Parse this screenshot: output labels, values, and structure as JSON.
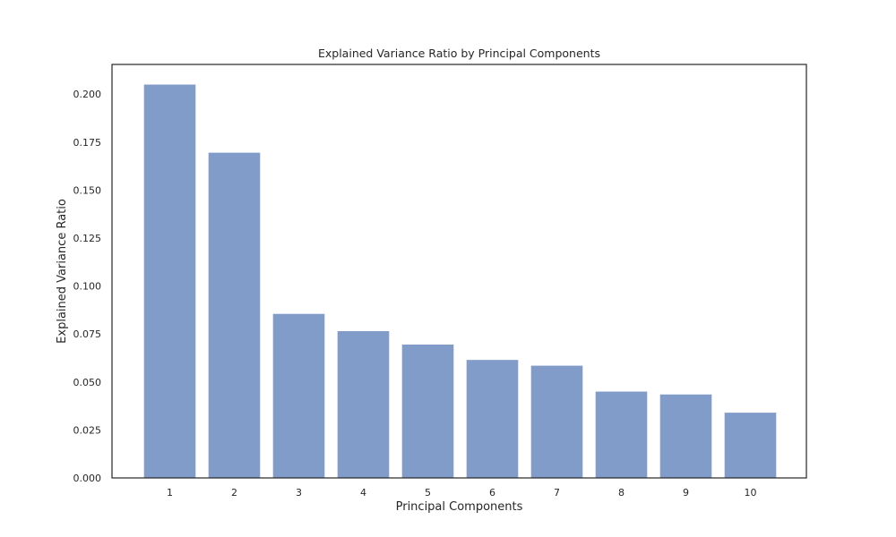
{
  "chart_data": {
    "type": "bar",
    "title": "Explained Variance Ratio by Principal Components",
    "xlabel": "Principal Components",
    "ylabel": "Explained Variance Ratio",
    "categories": [
      "1",
      "2",
      "3",
      "4",
      "5",
      "6",
      "7",
      "8",
      "9",
      "10"
    ],
    "values": [
      0.205,
      0.1695,
      0.0855,
      0.0765,
      0.0695,
      0.0615,
      0.0585,
      0.045,
      0.0435,
      0.034
    ],
    "ylim": [
      0,
      0.2155
    ],
    "yticks": [
      "0.000",
      "0.025",
      "0.050",
      "0.075",
      "0.100",
      "0.125",
      "0.150",
      "0.175",
      "0.200"
    ],
    "ytick_values": [
      0,
      0.025,
      0.05,
      0.075,
      0.1,
      0.125,
      0.15,
      0.175,
      0.2
    ],
    "grid": false,
    "legend": "none",
    "bar_color": "#4c72b0"
  }
}
